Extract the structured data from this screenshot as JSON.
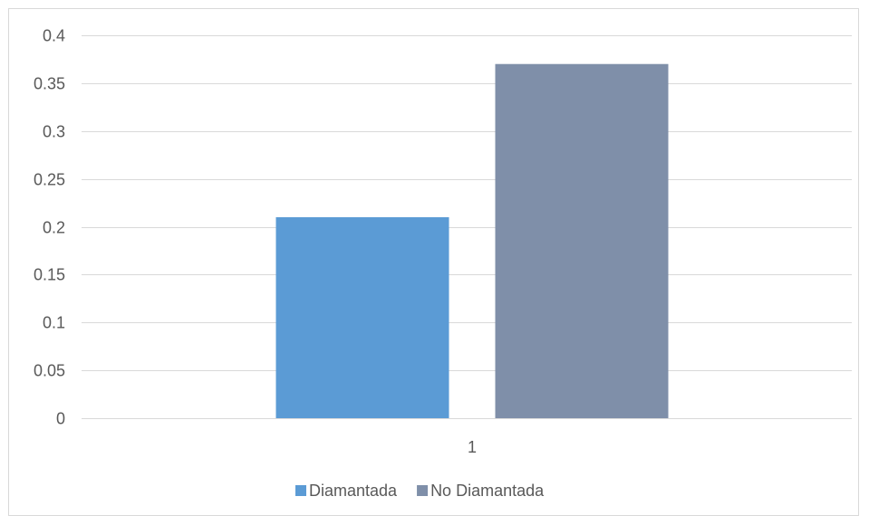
{
  "chart_data": {
    "type": "bar",
    "title": "",
    "xlabel": "",
    "ylabel": "",
    "categories": [
      "1"
    ],
    "series": [
      {
        "name": "Diamantada",
        "values": [
          0.21
        ],
        "color": "#5b9bd5"
      },
      {
        "name": "No Diamantada",
        "values": [
          0.37
        ],
        "color": "#7f8fa9"
      }
    ],
    "ylim": [
      0,
      0.4
    ],
    "yticks": [
      "0",
      "0.05",
      "0.1",
      "0.15",
      "0.2",
      "0.25",
      "0.3",
      "0.35",
      "0.4"
    ],
    "grid": true,
    "gridline_color": "#d9d9d9",
    "legend_position": "bottom"
  }
}
